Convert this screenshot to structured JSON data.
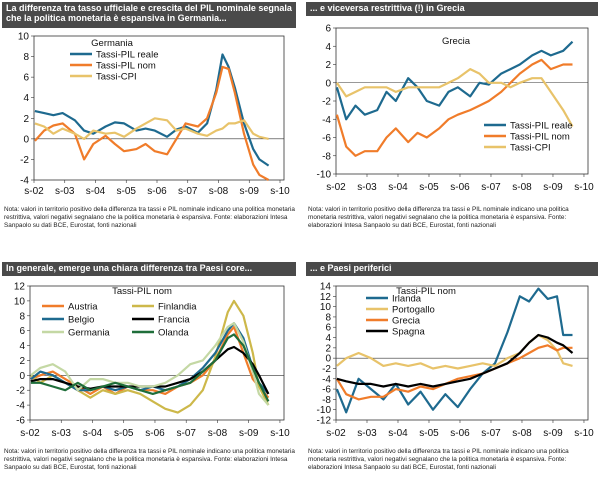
{
  "colors": {
    "header_bg": "#4a4a4a",
    "blue": "#1e6a8f",
    "orange": "#f07c2a",
    "tan": "#e8c36a",
    "olive": "#cdb84a",
    "lightgreen": "#c4d8a4",
    "black": "#000000",
    "darkgreen": "#1f6e3a"
  },
  "chart_data": [
    {
      "type": "line",
      "title": "La differenza tra tasso ufficiale e crescita del PIL nominale segnala che la politica monetaria è espansiva in Germania...",
      "legend_title": "Germania",
      "x_ticks": [
        "s-02",
        "s-03",
        "s-04",
        "s-05",
        "s-06",
        "s-07",
        "s-08",
        "s-09",
        "s-10"
      ],
      "xlim": [
        2002.67,
        2010.8
      ],
      "ylim": [
        -4,
        10
      ],
      "y_ticks": [
        -4,
        -2,
        0,
        2,
        4,
        6,
        8,
        10
      ],
      "note": "Nota: valori in territorio positivo della differenza tra tassi e PIL nominale indicano una politica monetaria restrittiva, valori negativi segnalano che la politica monetaria è espansiva. Fonte: elaborazioni Intesa Sanpaolo su dati BCE, Eurostat, fonti nazionali",
      "series": [
        {
          "name": "Tassi-PIL reale",
          "color": "#1e6a8f",
          "x": [
            2002.7,
            2003.0,
            2003.3,
            2003.6,
            2004.0,
            2004.3,
            2004.6,
            2005.0,
            2005.3,
            2005.6,
            2006.0,
            2006.3,
            2006.6,
            2007.0,
            2007.3,
            2007.6,
            2008.0,
            2008.3,
            2008.6,
            2008.8,
            2009.0,
            2009.2,
            2009.5,
            2009.8,
            2010.0,
            2010.3
          ],
          "values": [
            2.7,
            2.5,
            2.3,
            2.5,
            1.8,
            0.8,
            0.5,
            1.2,
            1.6,
            1.5,
            0.8,
            1.0,
            0.8,
            0.2,
            0.9,
            1.2,
            0.6,
            1.5,
            4.8,
            8.2,
            7.0,
            5.0,
            1.5,
            -1.0,
            -2.0,
            -2.6
          ]
        },
        {
          "name": "Tassi-PIL nom",
          "color": "#f07c2a",
          "x": [
            2002.7,
            2003.0,
            2003.3,
            2003.6,
            2004.0,
            2004.3,
            2004.6,
            2005.0,
            2005.3,
            2005.6,
            2006.0,
            2006.3,
            2006.6,
            2007.0,
            2007.3,
            2007.6,
            2008.0,
            2008.3,
            2008.6,
            2008.8,
            2009.0,
            2009.2,
            2009.5,
            2009.8,
            2010.0,
            2010.3
          ],
          "values": [
            -0.2,
            0.8,
            1.3,
            1.5,
            0.5,
            -2.0,
            -0.5,
            0.3,
            -0.5,
            -1.2,
            -1.0,
            -0.5,
            -1.2,
            -1.5,
            0.0,
            1.5,
            1.2,
            2.0,
            4.5,
            7.0,
            6.8,
            4.5,
            0.5,
            -2.5,
            -3.5,
            -4.0
          ]
        },
        {
          "name": "Tassi-CPI",
          "color": "#e8c36a",
          "x": [
            2002.7,
            2003.0,
            2003.3,
            2003.6,
            2004.0,
            2004.3,
            2004.6,
            2005.0,
            2005.3,
            2005.6,
            2006.0,
            2006.3,
            2006.6,
            2007.0,
            2007.3,
            2007.6,
            2008.0,
            2008.3,
            2008.6,
            2008.8,
            2009.0,
            2009.2,
            2009.5,
            2009.8,
            2010.0,
            2010.3
          ],
          "values": [
            1.5,
            1.2,
            0.5,
            1.0,
            0.5,
            0.0,
            0.8,
            0.5,
            0.6,
            0.2,
            1.0,
            1.5,
            2.0,
            1.8,
            0.8,
            1.0,
            0.5,
            0.3,
            0.8,
            1.0,
            1.5,
            1.5,
            1.8,
            0.5,
            0.2,
            0.0
          ]
        }
      ]
    },
    {
      "type": "line",
      "title": "... e viceversa restrittiva (!) in Grecia",
      "legend_title": "Grecia",
      "x_ticks": [
        "s-02",
        "s-03",
        "s-04",
        "s-05",
        "s-06",
        "s-07",
        "s-08",
        "s-09",
        "s-10"
      ],
      "xlim": [
        2002.67,
        2010.8
      ],
      "ylim": [
        -10,
        6
      ],
      "y_ticks": [
        -10,
        -8,
        -6,
        -4,
        -2,
        0,
        2,
        4,
        6
      ],
      "note": "Nota: valori in territorio positivo della differenza tra tassi e PIL nominale indicano una politica monetaria restrittiva, valori negativi segnalano che la politica monetaria è espansiva. Fonte: elaborazioni Intesa Sanpaolo su dati BCE, Eurostat, fonti nazionali",
      "series": [
        {
          "name": "Tassi-PIL reale",
          "color": "#1e6a8f",
          "x": [
            2002.7,
            2003.0,
            2003.3,
            2003.6,
            2004.0,
            2004.3,
            2004.6,
            2005.0,
            2005.3,
            2005.6,
            2006.0,
            2006.3,
            2006.6,
            2007.0,
            2007.3,
            2007.6,
            2008.0,
            2008.3,
            2008.6,
            2009.0,
            2009.3,
            2009.6,
            2010.0,
            2010.3
          ],
          "values": [
            -0.5,
            -4.0,
            -2.5,
            -3.5,
            -3.0,
            -1.0,
            -2.0,
            0.5,
            -0.5,
            -2.0,
            -2.5,
            -1.0,
            -0.5,
            -1.5,
            0.0,
            -0.2,
            1.0,
            1.5,
            2.0,
            3.0,
            3.5,
            3.0,
            3.5,
            4.5
          ]
        },
        {
          "name": "Tassi-PIL nom",
          "color": "#f07c2a",
          "x": [
            2002.7,
            2003.0,
            2003.3,
            2003.6,
            2004.0,
            2004.3,
            2004.6,
            2005.0,
            2005.3,
            2005.6,
            2006.0,
            2006.3,
            2006.6,
            2007.0,
            2007.3,
            2007.6,
            2008.0,
            2008.3,
            2008.6,
            2009.0,
            2009.3,
            2009.6,
            2010.0,
            2010.3
          ],
          "values": [
            -3.5,
            -7.0,
            -8.0,
            -7.5,
            -7.5,
            -6.0,
            -5.0,
            -6.5,
            -5.5,
            -6.0,
            -5.0,
            -4.0,
            -3.5,
            -3.0,
            -2.5,
            -2.0,
            -1.0,
            0.0,
            1.0,
            2.0,
            2.5,
            1.5,
            2.0,
            2.0
          ]
        },
        {
          "name": "Tassi-CPI",
          "color": "#e8c36a",
          "x": [
            2002.7,
            2003.0,
            2003.3,
            2003.6,
            2004.0,
            2004.3,
            2004.6,
            2005.0,
            2005.3,
            2005.6,
            2006.0,
            2006.3,
            2006.6,
            2007.0,
            2007.3,
            2007.6,
            2008.0,
            2008.3,
            2008.6,
            2009.0,
            2009.3,
            2009.6,
            2010.0,
            2010.3
          ],
          "values": [
            0.0,
            -1.5,
            -1.0,
            -0.5,
            -0.5,
            -0.5,
            -1.0,
            -0.5,
            -0.5,
            -0.5,
            -0.5,
            0.0,
            0.5,
            1.5,
            1.0,
            0.0,
            0.0,
            -0.5,
            0.0,
            0.5,
            0.5,
            -1.0,
            -3.0,
            -4.8
          ]
        }
      ]
    },
    {
      "type": "line",
      "title": "In generale, emerge una chiara differenza tra Paesi core...",
      "legend_title": "Tassi-PIL nom",
      "x_ticks": [
        "s-02",
        "s-03",
        "s-04",
        "s-05",
        "s-06",
        "s-07",
        "s-08",
        "s-09",
        "s-10"
      ],
      "xlim": [
        2002.67,
        2010.8
      ],
      "ylim": [
        -6,
        12
      ],
      "y_ticks": [
        -6,
        -4,
        -2,
        0,
        2,
        4,
        6,
        8,
        10,
        12
      ],
      "note": "Nota: valori in territorio positivo della differenza tra tassi e PIL nominale indicano una politica monetaria restrittiva, valori negativi segnalano che la politica monetaria è espansiva. Fonte: elaborazioni Intesa Sanpaolo su dati BCE, Eurostat, fonti nazionali",
      "series": [
        {
          "name": "Austria",
          "color": "#f07c2a",
          "x": [
            2002.7,
            2003.0,
            2003.4,
            2003.8,
            2004.2,
            2004.6,
            2005.0,
            2005.4,
            2005.8,
            2006.2,
            2006.6,
            2007.0,
            2007.4,
            2007.8,
            2008.2,
            2008.6,
            2009.0,
            2009.2,
            2009.5,
            2009.8,
            2010.0,
            2010.3
          ],
          "values": [
            -0.5,
            0.0,
            0.5,
            -0.5,
            -1.5,
            -2.5,
            -1.5,
            -2.5,
            -1.5,
            -2.0,
            -2.0,
            -2.5,
            -1.5,
            -1.0,
            0.0,
            2.0,
            5.5,
            6.5,
            3.0,
            -0.5,
            -1.5,
            -3.0
          ]
        },
        {
          "name": "Finlandia",
          "color": "#cdb84a",
          "x": [
            2002.7,
            2003.0,
            2003.4,
            2003.8,
            2004.2,
            2004.6,
            2005.0,
            2005.4,
            2005.8,
            2006.2,
            2006.6,
            2007.0,
            2007.4,
            2007.8,
            2008.2,
            2008.6,
            2009.0,
            2009.2,
            2009.5,
            2009.8,
            2010.0,
            2010.3
          ],
          "values": [
            0.0,
            -1.0,
            0.0,
            -1.0,
            -2.0,
            -3.0,
            -2.0,
            -2.5,
            -2.0,
            -2.5,
            -3.5,
            -4.5,
            -5.0,
            -4.0,
            -2.0,
            2.5,
            8.5,
            10.0,
            8.0,
            3.0,
            -1.5,
            -4.0
          ]
        },
        {
          "name": "Belgio",
          "color": "#1e6a8f",
          "x": [
            2002.7,
            2003.0,
            2003.4,
            2003.8,
            2004.2,
            2004.6,
            2005.0,
            2005.4,
            2005.8,
            2006.2,
            2006.6,
            2007.0,
            2007.4,
            2007.8,
            2008.2,
            2008.6,
            2009.0,
            2009.2,
            2009.5,
            2009.8,
            2010.0,
            2010.3
          ],
          "values": [
            -0.5,
            0.5,
            0.0,
            -1.0,
            -2.0,
            -2.0,
            -1.5,
            -2.0,
            -1.5,
            -2.0,
            -1.5,
            -2.0,
            -1.5,
            -0.5,
            1.0,
            3.0,
            6.0,
            7.0,
            5.0,
            1.0,
            -1.0,
            -2.5
          ]
        },
        {
          "name": "Francia",
          "color": "#000000",
          "x": [
            2002.7,
            2003.0,
            2003.4,
            2003.8,
            2004.2,
            2004.6,
            2005.0,
            2005.4,
            2005.8,
            2006.2,
            2006.6,
            2007.0,
            2007.4,
            2007.8,
            2008.2,
            2008.6,
            2009.0,
            2009.2,
            2009.5,
            2009.8,
            2010.0,
            2010.3
          ],
          "values": [
            -0.8,
            -0.5,
            -0.5,
            -1.0,
            -1.5,
            -1.8,
            -1.5,
            -1.5,
            -1.5,
            -1.5,
            -1.5,
            -1.5,
            -1.0,
            -0.5,
            0.5,
            2.0,
            3.5,
            3.8,
            3.0,
            1.5,
            0.0,
            -2.5
          ]
        },
        {
          "name": "Germania",
          "color": "#c4d8a4",
          "x": [
            2002.7,
            2003.0,
            2003.4,
            2003.8,
            2004.2,
            2004.6,
            2005.0,
            2005.4,
            2005.8,
            2006.2,
            2006.6,
            2007.0,
            2007.4,
            2007.8,
            2008.2,
            2008.6,
            2009.0,
            2009.2,
            2009.5,
            2009.8,
            2010.0,
            2010.3
          ],
          "values": [
            0.0,
            1.0,
            1.5,
            0.5,
            -2.0,
            -0.5,
            -0.5,
            -1.0,
            -1.0,
            -1.5,
            -1.5,
            -1.0,
            0.0,
            1.5,
            2.0,
            4.0,
            6.5,
            7.0,
            4.5,
            0.5,
            -2.5,
            -4.0
          ]
        },
        {
          "name": "Olanda",
          "color": "#1f6e3a",
          "x": [
            2002.7,
            2003.0,
            2003.4,
            2003.8,
            2004.2,
            2004.6,
            2005.0,
            2005.4,
            2005.8,
            2006.2,
            2006.6,
            2007.0,
            2007.4,
            2007.8,
            2008.2,
            2008.6,
            2009.0,
            2009.2,
            2009.5,
            2009.8,
            2010.0,
            2010.3
          ],
          "values": [
            -1.0,
            -1.0,
            -1.5,
            -2.0,
            -1.0,
            -2.0,
            -1.5,
            -1.0,
            -1.5,
            -2.0,
            -2.5,
            -2.0,
            -1.5,
            -1.0,
            0.5,
            2.0,
            5.0,
            5.5,
            4.0,
            1.0,
            -1.0,
            -3.5
          ]
        }
      ]
    },
    {
      "type": "line",
      "title": "... e Paesi periferici",
      "legend_title": "Tassi-PIL nom",
      "x_ticks": [
        "s-02",
        "s-03",
        "s-04",
        "s-05",
        "s-06",
        "s-07",
        "s-08",
        "s-09",
        "s-10"
      ],
      "xlim": [
        2002.67,
        2010.8
      ],
      "ylim": [
        -12,
        14
      ],
      "y_ticks": [
        -12,
        -10,
        -8,
        -6,
        -4,
        -2,
        0,
        2,
        4,
        6,
        8,
        10,
        12,
        14
      ],
      "note": "Nota: valori in territorio positivo della differenza tra tassi e PIL nominale indicano una politica monetaria restrittiva, valori negativi segnalano che la politica monetaria è espansiva. Fonte: elaborazioni Intesa Sanpaolo su dati BCE, Eurostat, fonti nazionali",
      "series": [
        {
          "name": "Irlanda",
          "color": "#1e6a8f",
          "x": [
            2002.7,
            2003.0,
            2003.4,
            2003.8,
            2004.2,
            2004.6,
            2005.0,
            2005.4,
            2005.8,
            2006.2,
            2006.6,
            2007.0,
            2007.4,
            2007.8,
            2008.2,
            2008.6,
            2008.9,
            2009.2,
            2009.5,
            2009.8,
            2010.0,
            2010.3
          ],
          "values": [
            -6.0,
            -10.5,
            -4.0,
            -6.0,
            -8.0,
            -5.0,
            -9.0,
            -6.5,
            -10.0,
            -7.0,
            -9.5,
            -6.0,
            -3.0,
            -1.0,
            5.0,
            12.0,
            11.0,
            13.5,
            11.5,
            12.0,
            4.5,
            4.5
          ]
        },
        {
          "name": "Portogallo",
          "color": "#e8c36a",
          "x": [
            2002.7,
            2003.0,
            2003.4,
            2003.8,
            2004.2,
            2004.6,
            2005.0,
            2005.4,
            2005.8,
            2006.2,
            2006.6,
            2007.0,
            2007.4,
            2007.8,
            2008.2,
            2008.6,
            2008.9,
            2009.2,
            2009.5,
            2009.8,
            2010.0,
            2010.3
          ],
          "values": [
            -1.5,
            0.0,
            1.0,
            0.0,
            -1.5,
            -1.0,
            -1.5,
            -1.0,
            -2.0,
            -1.5,
            -2.0,
            -1.5,
            -1.0,
            -1.5,
            0.0,
            1.0,
            3.0,
            4.5,
            3.5,
            1.5,
            -1.0,
            -1.5
          ]
        },
        {
          "name": "Grecia",
          "color": "#f07c2a",
          "x": [
            2002.7,
            2003.0,
            2003.4,
            2003.8,
            2004.2,
            2004.6,
            2005.0,
            2005.4,
            2005.8,
            2006.2,
            2006.6,
            2007.0,
            2007.4,
            2007.8,
            2008.2,
            2008.6,
            2008.9,
            2009.2,
            2009.5,
            2009.8,
            2010.0,
            2010.3
          ],
          "values": [
            -4.0,
            -7.0,
            -8.0,
            -7.5,
            -7.5,
            -6.0,
            -6.5,
            -5.5,
            -6.0,
            -5.0,
            -4.0,
            -3.5,
            -3.0,
            -2.0,
            -1.0,
            0.0,
            1.0,
            2.0,
            2.5,
            1.5,
            2.0,
            2.0
          ]
        },
        {
          "name": "Spagna",
          "color": "#000000",
          "x": [
            2002.7,
            2003.0,
            2003.4,
            2003.8,
            2004.2,
            2004.6,
            2005.0,
            2005.4,
            2005.8,
            2006.2,
            2006.6,
            2007.0,
            2007.4,
            2007.8,
            2008.2,
            2008.6,
            2008.9,
            2009.2,
            2009.5,
            2009.8,
            2010.0,
            2010.3
          ],
          "values": [
            -4.0,
            -4.5,
            -5.0,
            -5.0,
            -5.5,
            -5.0,
            -5.5,
            -5.0,
            -5.5,
            -5.0,
            -4.5,
            -4.0,
            -3.0,
            -2.0,
            -1.0,
            1.0,
            3.0,
            4.5,
            4.0,
            3.0,
            2.5,
            1.0
          ]
        }
      ]
    }
  ]
}
